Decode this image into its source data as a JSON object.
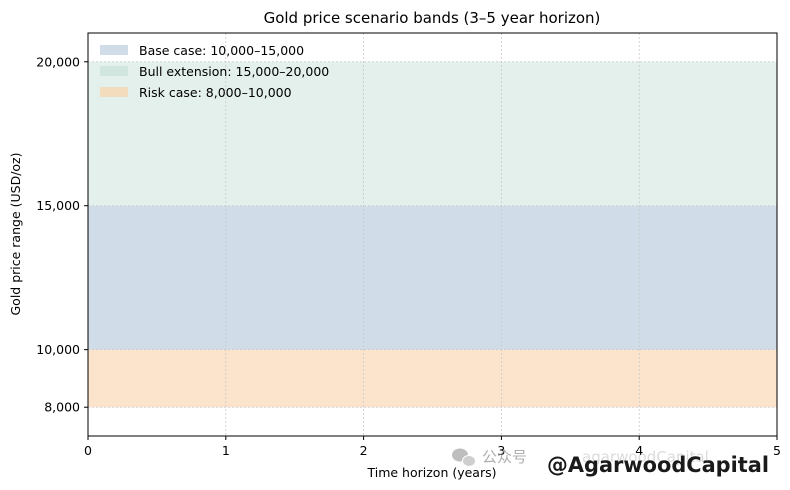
{
  "chart_data": {
    "type": "area",
    "title": "Gold price scenario bands (3–5 year horizon)",
    "xlabel": "Time horizon (years)",
    "ylabel": "Gold price range (USD/oz)",
    "xlim": [
      0,
      5
    ],
    "ylim": [
      7000,
      21000
    ],
    "x_ticks": [
      0,
      1,
      2,
      3,
      4,
      5
    ],
    "x_tick_labels": [
      "0",
      "1",
      "2",
      "3",
      "4",
      "5"
    ],
    "y_ticks": [
      8000,
      10000,
      15000,
      20000
    ],
    "y_tick_labels": [
      "8,000",
      "10,000",
      "15,000",
      "20,000"
    ],
    "grid": true,
    "legend_position": "top-left",
    "series": [
      {
        "name": "Base case: 10,000–15,000",
        "low": 10000,
        "high": 15000,
        "color": "#d0dce8"
      },
      {
        "name": "Bull extension: 15,000–20,000",
        "low": 15000,
        "high": 20000,
        "color": "#e4f0ec"
      },
      {
        "name": "Risk case: 8,000–10,000",
        "low": 8000,
        "high": 10000,
        "color": "#fbe3cc"
      }
    ],
    "legend_swatch_colors": [
      "#d0dce8",
      "#d2e6e0",
      "#f3dcbd"
    ]
  },
  "watermark": {
    "channel_label": "公众号",
    "channel_name": "agarwoodCapital",
    "brand": "@AgarwoodCapital",
    "icon": "wechat-icon"
  }
}
